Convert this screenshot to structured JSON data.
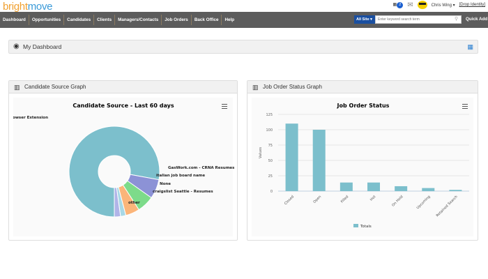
{
  "header": {
    "logo": "brightmove",
    "calendar_badge": "2",
    "user_name": "Chris Wing",
    "drop_identity": "[Drop Identity]"
  },
  "nav": {
    "items": [
      "Dashboard",
      "Opportunities",
      "Candidates",
      "Clients",
      "Managers/Contacts",
      "Job Orders",
      "Back Office",
      "Help"
    ],
    "site_select": "All Site",
    "search_placeholder": "Enter keyword search term",
    "quick_add": "Quick Add"
  },
  "dashboard": {
    "title": "My Dashboard"
  },
  "panels": {
    "left_title": "Candidate Source Graph",
    "right_title": "Job Order Status Graph"
  },
  "chart_data": [
    {
      "type": "pie",
      "title": "Candidate Source - Last 60 days",
      "donut": true,
      "labels": [
        "Browser Extension",
        "GasWork.com - CRNA Resumes",
        "italian job board name",
        "None",
        "craigslist Seattle - Resumes",
        "other"
      ],
      "values": [
        77.8,
        6.9,
        6.1,
        5.0,
        1.9,
        2.2
      ],
      "colors": [
        "#7cbfcc",
        "#8c92d6",
        "#7ddb8a",
        "#fbb57a",
        "#a8d8e6",
        "#b0b4e8"
      ]
    },
    {
      "type": "bar",
      "title": "Job Order Status",
      "ylabel": "Values",
      "ylim": [
        0,
        125
      ],
      "yticks": [
        0,
        25,
        50,
        75,
        100,
        125
      ],
      "categories": [
        "Closed",
        "Open",
        "Filled",
        "Hot",
        "On Hold",
        "Upcoming",
        "Retained Search"
      ],
      "series": [
        {
          "name": "Totals",
          "values": [
            110,
            100,
            14,
            14,
            8,
            5,
            2
          ]
        }
      ],
      "color": "#7cbfcc",
      "grid": true,
      "legend": "bottom"
    }
  ]
}
